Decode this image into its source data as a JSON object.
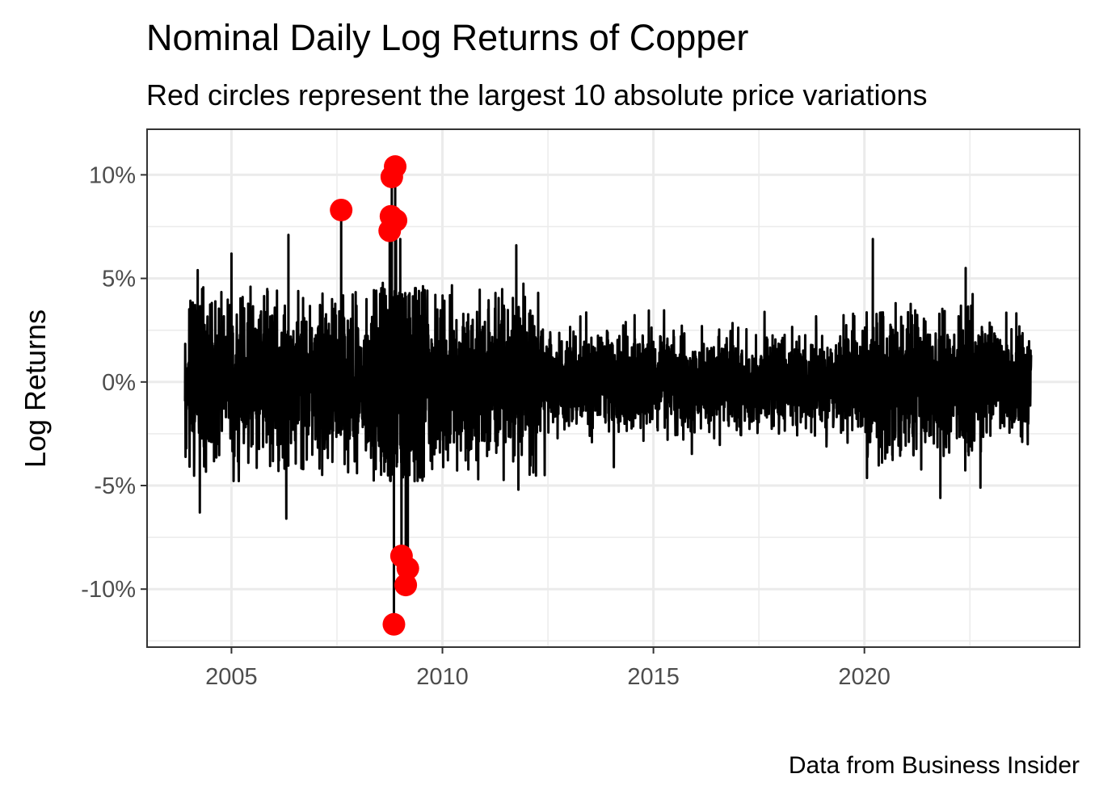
{
  "chart_data": {
    "type": "line",
    "title": "Nominal Daily Log Returns of Copper",
    "subtitle": "Red circles represent the largest 10 absolute price variations",
    "caption": "Data from Business Insider",
    "xlabel": "",
    "ylabel": "Log Returns",
    "xlim": [
      2003.0,
      2025.1
    ],
    "ylim": [
      -0.128,
      0.122
    ],
    "x_ticks": [
      {
        "value": 2005,
        "label": "2005"
      },
      {
        "value": 2010,
        "label": "2010"
      },
      {
        "value": 2015,
        "label": "2015"
      },
      {
        "value": 2020,
        "label": "2020"
      }
    ],
    "y_ticks": [
      {
        "value": 0.1,
        "label": "10%"
      },
      {
        "value": 0.05,
        "label": "5%"
      },
      {
        "value": 0.0,
        "label": "0%"
      },
      {
        "value": -0.05,
        "label": "-5%"
      },
      {
        "value": -0.1,
        "label": "-10%"
      }
    ],
    "grid": true,
    "x_range": [
      2003.9,
      2023.95
    ],
    "series": [
      {
        "style": "line",
        "color": "#000000",
        "typical_range": [
          -0.025,
          0.025
        ],
        "notable_spikes": [
          {
            "x": 2004.2,
            "y": 0.054
          },
          {
            "x": 2004.25,
            "y": -0.063
          },
          {
            "x": 2005.0,
            "y": 0.062
          },
          {
            "x": 2006.35,
            "y": 0.071
          },
          {
            "x": 2006.3,
            "y": -0.066
          },
          {
            "x": 2007.6,
            "y": 0.083
          },
          {
            "x": 2008.2,
            "y": 0.04
          },
          {
            "x": 2009.0,
            "y": 0.069
          },
          {
            "x": 2011.8,
            "y": -0.052
          },
          {
            "x": 2011.75,
            "y": 0.066
          },
          {
            "x": 2020.2,
            "y": 0.069
          },
          {
            "x": 2021.8,
            "y": -0.056
          },
          {
            "x": 2022.4,
            "y": 0.055
          },
          {
            "x": 2022.75,
            "y": -0.051
          }
        ]
      },
      {
        "style": "points",
        "color": "#ff0000",
        "points": [
          {
            "x": 2007.6,
            "y": 0.083
          },
          {
            "x": 2008.88,
            "y": 0.104
          },
          {
            "x": 2008.8,
            "y": 0.099
          },
          {
            "x": 2008.78,
            "y": 0.08
          },
          {
            "x": 2008.9,
            "y": 0.078
          },
          {
            "x": 2008.75,
            "y": 0.073
          },
          {
            "x": 2009.03,
            "y": -0.084
          },
          {
            "x": 2009.18,
            "y": -0.09
          },
          {
            "x": 2009.13,
            "y": -0.098
          },
          {
            "x": 2008.85,
            "y": -0.117
          }
        ]
      }
    ]
  }
}
